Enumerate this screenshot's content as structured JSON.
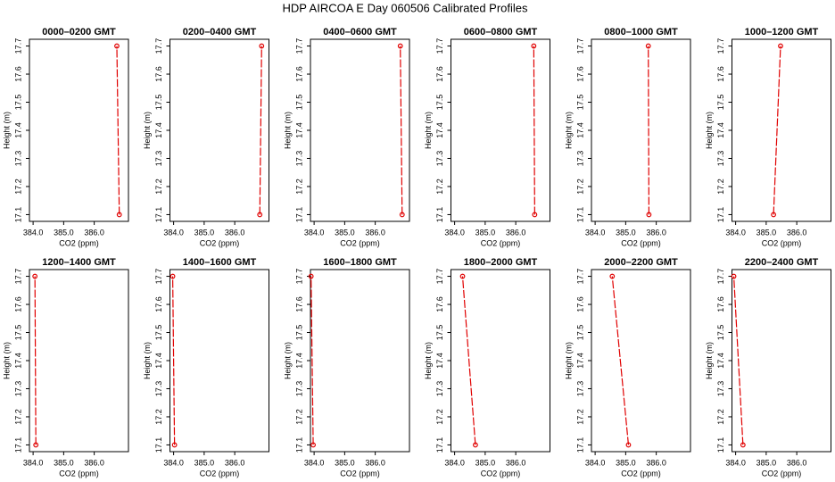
{
  "title": "HDP AIRCOA E  Day 060506  Calibrated Profiles",
  "chart_data": [
    {
      "type": "line",
      "title": "0000–0200 GMT",
      "xlabel": "CO2 (ppm)",
      "ylabel": "Height (m)",
      "color": "#e00000",
      "x": [
        386.82,
        386.74
      ],
      "values": [
        17.1,
        17.7
      ],
      "xlim": [
        383.88,
        387.12
      ],
      "ylim": [
        17.076,
        17.724
      ],
      "xticks": [
        {
          "value": 384,
          "label": "384.0"
        },
        {
          "value": 385,
          "label": "385.0"
        },
        {
          "value": 386,
          "label": "386.0"
        }
      ],
      "yticks": [
        17.1,
        17.2,
        17.3,
        17.4,
        17.5,
        17.6,
        17.7
      ]
    },
    {
      "type": "line",
      "title": "0200–0400 GMT",
      "xlabel": "CO2 (ppm)",
      "ylabel": "Height (m)",
      "color": "#e00000",
      "x": [
        386.82,
        386.88
      ],
      "values": [
        17.1,
        17.7
      ],
      "xlim": [
        383.88,
        387.12
      ],
      "ylim": [
        17.076,
        17.724
      ],
      "xticks": [
        {
          "value": 384,
          "label": "384.0"
        },
        {
          "value": 385,
          "label": "385.0"
        },
        {
          "value": 386,
          "label": "386.0"
        }
      ],
      "yticks": [
        17.1,
        17.2,
        17.3,
        17.4,
        17.5,
        17.6,
        17.7
      ]
    },
    {
      "type": "line",
      "title": "0400–0600 GMT",
      "xlabel": "CO2 (ppm)",
      "ylabel": "Height (m)",
      "color": "#e00000",
      "x": [
        386.88,
        386.82
      ],
      "values": [
        17.1,
        17.7
      ],
      "xlim": [
        383.88,
        387.12
      ],
      "ylim": [
        17.076,
        17.724
      ],
      "xticks": [
        {
          "value": 384,
          "label": "384.0"
        },
        {
          "value": 385,
          "label": "385.0"
        },
        {
          "value": 386,
          "label": "386.0"
        }
      ],
      "yticks": [
        17.1,
        17.2,
        17.3,
        17.4,
        17.5,
        17.6,
        17.7
      ]
    },
    {
      "type": "line",
      "title": "0600–0800 GMT",
      "xlabel": "CO2 (ppm)",
      "ylabel": "Height (m)",
      "color": "#e00000",
      "x": [
        386.62,
        386.59
      ],
      "values": [
        17.1,
        17.7
      ],
      "xlim": [
        383.88,
        387.12
      ],
      "ylim": [
        17.076,
        17.724
      ],
      "xticks": [
        {
          "value": 384,
          "label": "384.0"
        },
        {
          "value": 385,
          "label": "385.0"
        },
        {
          "value": 386,
          "label": "386.0"
        }
      ],
      "yticks": [
        17.1,
        17.2,
        17.3,
        17.4,
        17.5,
        17.6,
        17.7
      ]
    },
    {
      "type": "line",
      "title": "0800–1000 GMT",
      "xlabel": "CO2 (ppm)",
      "ylabel": "Height (m)",
      "color": "#e00000",
      "x": [
        385.76,
        385.74
      ],
      "values": [
        17.1,
        17.7
      ],
      "xlim": [
        383.88,
        387.12
      ],
      "ylim": [
        17.076,
        17.724
      ],
      "xticks": [
        {
          "value": 384,
          "label": "384.0"
        },
        {
          "value": 385,
          "label": "385.0"
        },
        {
          "value": 386,
          "label": "386.0"
        }
      ],
      "yticks": [
        17.1,
        17.2,
        17.3,
        17.4,
        17.5,
        17.6,
        17.7
      ]
    },
    {
      "type": "line",
      "title": "1000–1200 GMT",
      "xlabel": "CO2 (ppm)",
      "ylabel": "Height (m)",
      "color": "#e00000",
      "x": [
        385.24,
        385.47
      ],
      "values": [
        17.1,
        17.7
      ],
      "xlim": [
        383.88,
        387.12
      ],
      "ylim": [
        17.076,
        17.724
      ],
      "xticks": [
        {
          "value": 384,
          "label": "384.0"
        },
        {
          "value": 385,
          "label": "385.0"
        },
        {
          "value": 386,
          "label": "386.0"
        }
      ],
      "yticks": [
        17.1,
        17.2,
        17.3,
        17.4,
        17.5,
        17.6,
        17.7
      ]
    },
    {
      "type": "line",
      "title": "1200–1400 GMT",
      "xlabel": "CO2 (ppm)",
      "ylabel": "Height (m)",
      "color": "#e00000",
      "x": [
        384.09,
        384.06
      ],
      "values": [
        17.1,
        17.7
      ],
      "xlim": [
        383.88,
        387.12
      ],
      "ylim": [
        17.076,
        17.724
      ],
      "xticks": [
        {
          "value": 384,
          "label": "384.0"
        },
        {
          "value": 385,
          "label": "385.0"
        },
        {
          "value": 386,
          "label": "386.0"
        }
      ],
      "yticks": [
        17.1,
        17.2,
        17.3,
        17.4,
        17.5,
        17.6,
        17.7
      ]
    },
    {
      "type": "line",
      "title": "1400–1600 GMT",
      "xlabel": "CO2 (ppm)",
      "ylabel": "Height (m)",
      "color": "#e00000",
      "x": [
        384.03,
        383.97
      ],
      "values": [
        17.1,
        17.7
      ],
      "xlim": [
        383.88,
        387.12
      ],
      "ylim": [
        17.076,
        17.724
      ],
      "xticks": [
        {
          "value": 384,
          "label": "384.0"
        },
        {
          "value": 385,
          "label": "385.0"
        },
        {
          "value": 386,
          "label": "386.0"
        }
      ],
      "yticks": [
        17.1,
        17.2,
        17.3,
        17.4,
        17.5,
        17.6,
        17.7
      ]
    },
    {
      "type": "line",
      "title": "1600–1800 GMT",
      "xlabel": "CO2 (ppm)",
      "ylabel": "Height (m)",
      "color": "#e00000",
      "x": [
        383.97,
        383.9
      ],
      "values": [
        17.1,
        17.7
      ],
      "xlim": [
        383.88,
        387.12
      ],
      "ylim": [
        17.076,
        17.724
      ],
      "xticks": [
        {
          "value": 384,
          "label": "384.0"
        },
        {
          "value": 385,
          "label": "385.0"
        },
        {
          "value": 386,
          "label": "386.0"
        }
      ],
      "yticks": [
        17.1,
        17.2,
        17.3,
        17.4,
        17.5,
        17.6,
        17.7
      ]
    },
    {
      "type": "line",
      "title": "1800–2000 GMT",
      "xlabel": "CO2 (ppm)",
      "ylabel": "Height (m)",
      "color": "#e00000",
      "x": [
        384.68,
        384.26
      ],
      "values": [
        17.1,
        17.7
      ],
      "xlim": [
        383.88,
        387.12
      ],
      "ylim": [
        17.076,
        17.724
      ],
      "xticks": [
        {
          "value": 384,
          "label": "384.0"
        },
        {
          "value": 385,
          "label": "385.0"
        },
        {
          "value": 386,
          "label": "386.0"
        }
      ],
      "yticks": [
        17.1,
        17.2,
        17.3,
        17.4,
        17.5,
        17.6,
        17.7
      ]
    },
    {
      "type": "line",
      "title": "2000–2200 GMT",
      "xlabel": "CO2 (ppm)",
      "ylabel": "Height (m)",
      "color": "#e00000",
      "x": [
        385.09,
        384.56
      ],
      "values": [
        17.1,
        17.7
      ],
      "xlim": [
        383.88,
        387.12
      ],
      "ylim": [
        17.076,
        17.724
      ],
      "xticks": [
        {
          "value": 384,
          "label": "384.0"
        },
        {
          "value": 385,
          "label": "385.0"
        },
        {
          "value": 386,
          "label": "386.0"
        }
      ],
      "yticks": [
        17.1,
        17.2,
        17.3,
        17.4,
        17.5,
        17.6,
        17.7
      ]
    },
    {
      "type": "line",
      "title": "2200–2400 GMT",
      "xlabel": "CO2 (ppm)",
      "ylabel": "Height (m)",
      "color": "#e00000",
      "x": [
        384.24,
        383.94
      ],
      "values": [
        17.1,
        17.7
      ],
      "xlim": [
        383.88,
        387.12
      ],
      "ylim": [
        17.076,
        17.724
      ],
      "xticks": [
        {
          "value": 384,
          "label": "384.0"
        },
        {
          "value": 385,
          "label": "385.0"
        },
        {
          "value": 386,
          "label": "386.0"
        }
      ],
      "yticks": [
        17.1,
        17.2,
        17.3,
        17.4,
        17.5,
        17.6,
        17.7
      ]
    }
  ]
}
